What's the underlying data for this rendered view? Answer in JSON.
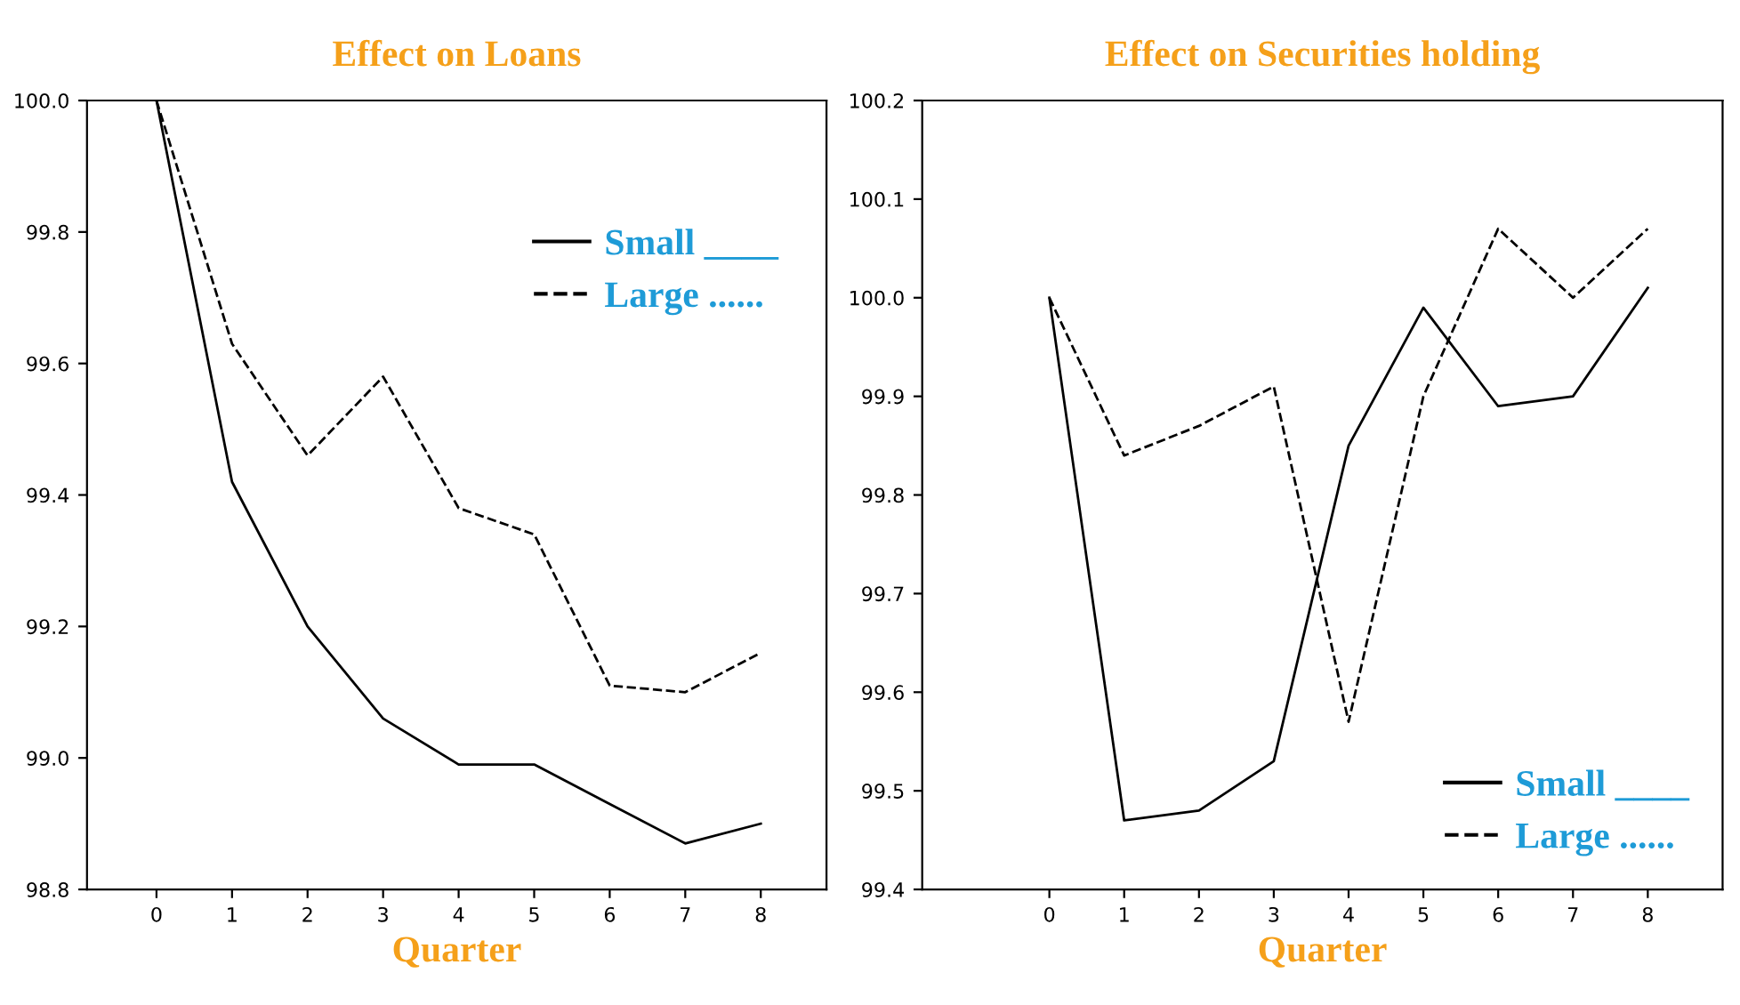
{
  "chart_data": [
    {
      "type": "line",
      "title": "Effect on Loans",
      "xlabel": "Quarter",
      "x": [
        0,
        1,
        2,
        3,
        4,
        5,
        6,
        7,
        8
      ],
      "xlim": [
        -0.92,
        8.87
      ],
      "xticks": [
        0,
        1,
        2,
        3,
        4,
        5,
        6,
        7,
        8
      ],
      "ylim": [
        98.8,
        100.0
      ],
      "yticks": [
        {
          "value": 98.8,
          "label": "98.8"
        },
        {
          "value": 99.0,
          "label": "99.0"
        },
        {
          "value": 99.2,
          "label": "99.2"
        },
        {
          "value": 99.4,
          "label": "99.4"
        },
        {
          "value": 99.6,
          "label": "99.6"
        },
        {
          "value": 99.8,
          "label": "99.8"
        },
        {
          "value": 100.0,
          "label": "100.0"
        }
      ],
      "grid": false,
      "legend": "top right",
      "series": [
        {
          "name": "Small ____",
          "color": "#000000",
          "line_style": "solid",
          "values": [
            100.0,
            99.42,
            99.2,
            99.06,
            98.99,
            98.99,
            98.93,
            98.87,
            98.9
          ]
        },
        {
          "name": "Large ......",
          "color": "#000000",
          "line_style": "dashed",
          "values": [
            100.0,
            99.63,
            99.46,
            99.58,
            99.38,
            99.34,
            99.11,
            99.1,
            99.16
          ]
        }
      ]
    },
    {
      "type": "line",
      "title": "Effect on Securities holding",
      "xlabel": "Quarter",
      "x": [
        0,
        1,
        2,
        3,
        4,
        5,
        6,
        7,
        8
      ],
      "xlim": [
        -1.7,
        9.0
      ],
      "xticks": [
        0,
        1,
        2,
        3,
        4,
        5,
        6,
        7,
        8
      ],
      "ylim": [
        99.4,
        100.2
      ],
      "yticks": [
        {
          "value": 99.4,
          "label": "99.4"
        },
        {
          "value": 99.5,
          "label": "99.5"
        },
        {
          "value": 99.6,
          "label": "99.6"
        },
        {
          "value": 99.7,
          "label": "99.7"
        },
        {
          "value": 99.8,
          "label": "99.8"
        },
        {
          "value": 99.9,
          "label": "99.9"
        },
        {
          "value": 100.0,
          "label": "100.0"
        },
        {
          "value": 100.1,
          "label": "100.1"
        },
        {
          "value": 100.2,
          "label": "100.2"
        }
      ],
      "grid": false,
      "legend": "bottom right",
      "series": [
        {
          "name": "Small ____",
          "color": "#000000",
          "line_style": "solid",
          "values": [
            100.0,
            99.47,
            99.48,
            99.53,
            99.85,
            99.99,
            99.89,
            99.9,
            100.01
          ]
        },
        {
          "name": "Large ......",
          "color": "#000000",
          "line_style": "dashed",
          "values": [
            100.0,
            99.84,
            99.87,
            99.91,
            99.57,
            99.9,
            100.07,
            100.0,
            100.07
          ]
        }
      ]
    }
  ]
}
